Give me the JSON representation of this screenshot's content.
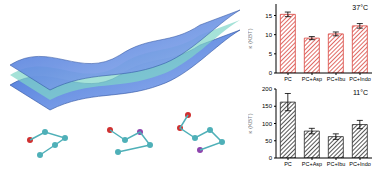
{
  "chart_data": [
    {
      "type": "bar",
      "annotation": "37°C",
      "y_label": "κ (KBT)",
      "categories": [
        "PC",
        "PC+Asp",
        "PC+Ibu",
        "PC+Indo"
      ],
      "values": [
        15.3,
        9.1,
        10.2,
        12.3
      ],
      "errors": [
        0.6,
        0.4,
        0.5,
        0.6
      ],
      "color": "#d9453f",
      "ylim": [
        0,
        18
      ],
      "yticks": [
        0,
        5,
        10,
        15
      ]
    },
    {
      "type": "bar",
      "annotation": "11°C",
      "y_label": "κ (KBT)",
      "categories": [
        "PC",
        "PC+Asp",
        "PC+Ibu",
        "PC+Indo"
      ],
      "values": [
        162,
        78,
        62,
        97
      ],
      "errors": [
        25,
        8,
        8,
        12
      ],
      "color": "#2b2b2b",
      "ylim": [
        0,
        200
      ],
      "yticks": [
        0,
        50,
        100,
        150,
        200
      ]
    }
  ]
}
